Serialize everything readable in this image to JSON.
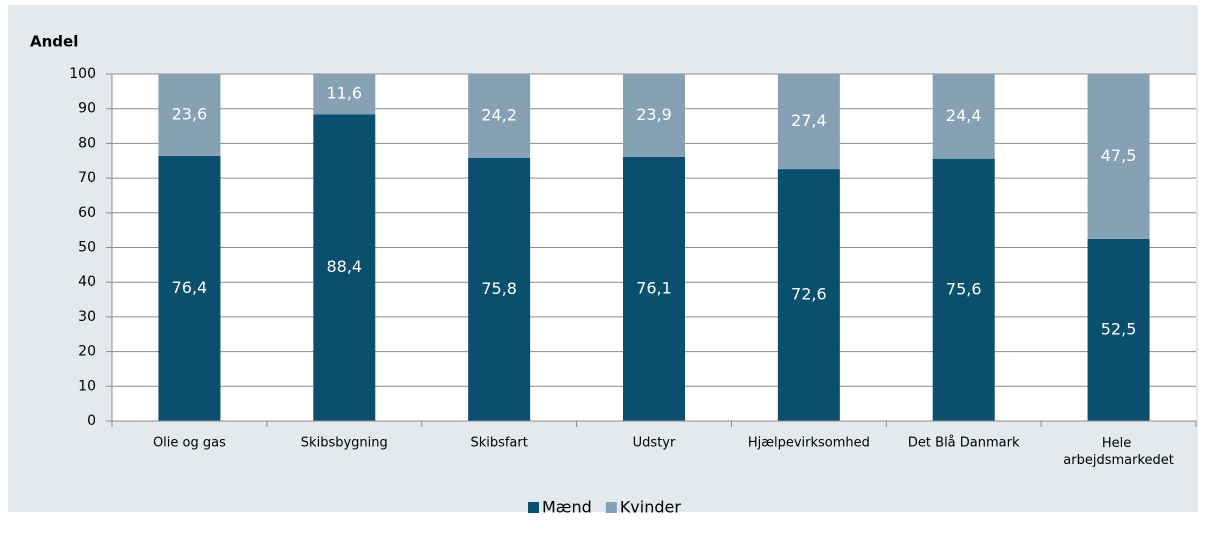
{
  "chart_data": {
    "type": "stacked_bar",
    "ylabel": "Andel",
    "categories": [
      "Olie og gas",
      "Skibsbygning",
      "Skibsfart",
      "Udstyr",
      "Hjælpevirksomhed",
      "Det Blå Danmark",
      "Hele arbejdsmarkedet"
    ],
    "series": [
      {
        "name": "Mænd",
        "color": "#0b4f6e",
        "values": [
          76.4,
          88.4,
          75.8,
          76.1,
          72.6,
          75.6,
          52.5
        ],
        "value_labels": [
          "76,4",
          "88,4",
          "75,8",
          "76,1",
          "72,6",
          "75,6",
          "52,5"
        ]
      },
      {
        "name": "Kvinder",
        "color": "#87a1b4",
        "values": [
          23.6,
          11.6,
          24.2,
          23.9,
          27.4,
          24.4,
          47.5
        ],
        "value_labels": [
          "23,6",
          "11,6",
          "24,2",
          "23,9",
          "27,4",
          "24,4",
          "47,5"
        ]
      }
    ],
    "ylim": [
      0,
      100
    ],
    "yticks": [
      0,
      10,
      20,
      30,
      40,
      50,
      60,
      70,
      80,
      90,
      100
    ],
    "grid": true,
    "legend": "bottom"
  }
}
